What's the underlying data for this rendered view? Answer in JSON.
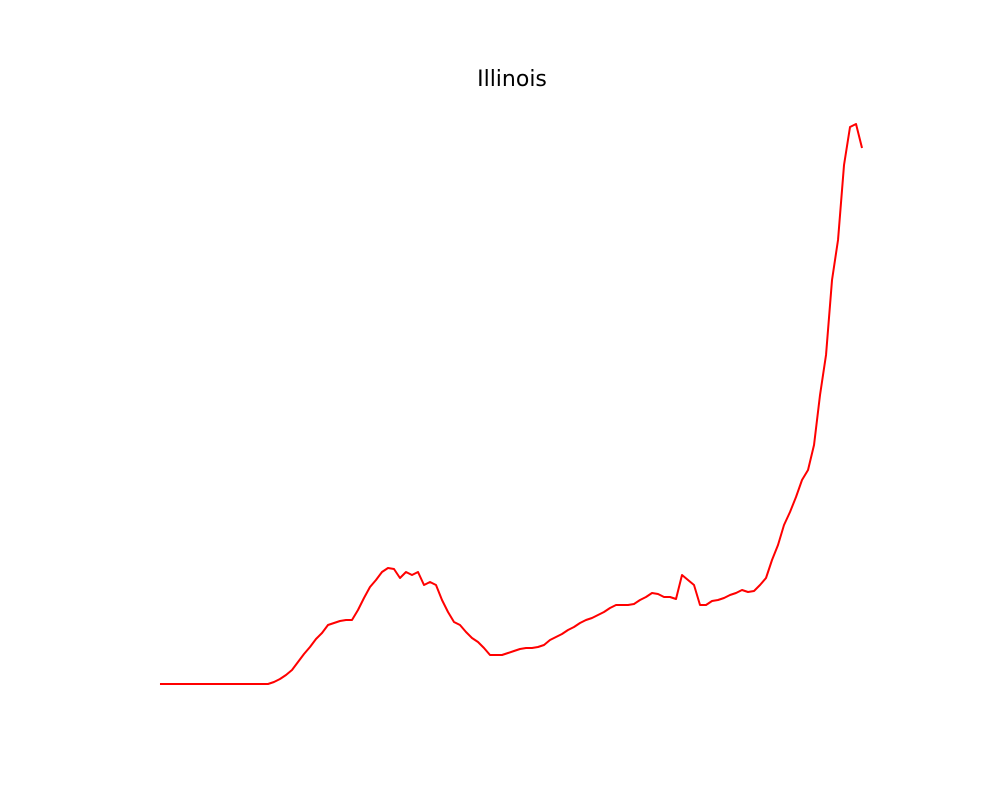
{
  "chart_data": {
    "type": "line",
    "title": "Illinois",
    "series": [
      {
        "color": "#ff0000",
        "values": [
          0,
          0,
          0,
          0,
          0,
          0,
          0,
          0,
          0,
          0,
          0,
          0,
          0,
          0,
          0,
          0,
          0,
          0,
          0,
          2,
          5,
          9,
          14,
          22,
          30,
          37,
          45,
          51,
          59,
          61,
          63,
          64,
          64,
          74,
          86,
          97,
          104,
          112,
          116,
          115,
          106,
          112,
          109,
          112,
          99,
          102,
          99,
          84,
          72,
          62,
          59,
          52,
          46,
          42,
          36,
          29,
          29,
          29,
          31,
          33,
          35,
          36,
          36,
          37,
          39,
          44,
          47,
          50,
          54,
          57,
          61,
          64,
          66,
          69,
          72,
          76,
          79,
          79,
          79,
          80,
          84,
          87,
          91,
          90,
          87,
          87,
          85,
          109,
          104,
          99,
          79,
          79,
          83,
          84,
          86,
          89,
          91,
          94,
          92,
          93,
          99,
          106,
          124,
          139,
          159,
          172,
          187,
          204,
          214,
          239,
          289,
          329,
          404,
          444,
          519,
          557,
          560,
          536
        ]
      }
    ],
    "xlim": [
      -5.83,
      123.33
    ],
    "ylim": [
      -28,
      588
    ]
  }
}
